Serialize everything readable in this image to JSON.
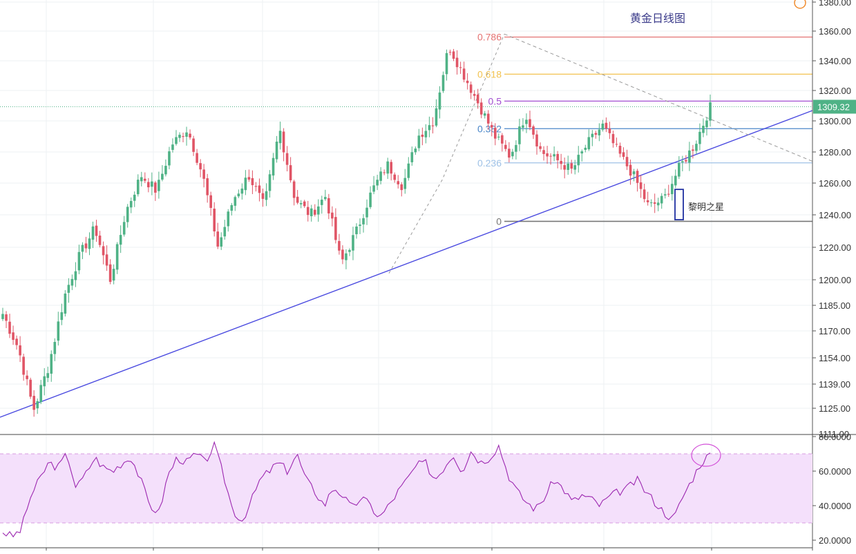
{
  "chart_data": [
    {
      "type": "candlestick",
      "title": "黄金日线图",
      "ylim": [
        1111,
        1380
      ],
      "price_ticks": [
        1125,
        1139,
        1154,
        1170,
        1185,
        1200,
        1220,
        1240,
        1260,
        1280,
        1300,
        1320,
        1340,
        1360,
        1380
      ],
      "tick_labels": [
        "1125.00",
        "1139.00",
        "1154.00",
        "1170.00",
        "1185.00",
        "1200.00",
        "1220.00",
        "1240.00",
        "1260.00",
        "1280.00",
        "1300.00",
        "1320.00",
        "1340.00",
        "1360.00",
        "1380.00"
      ],
      "axis_bottom_label": "1111.00",
      "current_price": 1309.32,
      "current_price_label": "1309.32",
      "fibonacci": [
        {
          "label": "0.786",
          "price": 1356,
          "color": "#e57373"
        },
        {
          "label": "0.618",
          "price": 1331,
          "color": "#f2c24f"
        },
        {
          "label": "0.5",
          "price": 1313,
          "color": "#a34fd1"
        },
        {
          "label": "0.382",
          "price": 1295,
          "color": "#4a86c8"
        },
        {
          "label": "0.236",
          "price": 1273,
          "color": "#9ec1e6"
        },
        {
          "label": "0",
          "price": 1236,
          "color": "#777777"
        }
      ],
      "annotation": {
        "text": "黎明之星",
        "price_low": 1237,
        "price_high": 1256
      },
      "key_prices": [
        1180,
        1160,
        1124,
        1150,
        1190,
        1215,
        1232,
        1200,
        1242,
        1265,
        1255,
        1285,
        1295,
        1265,
        1220,
        1250,
        1265,
        1245,
        1295,
        1250,
        1240,
        1252,
        1210,
        1230,
        1255,
        1272,
        1258,
        1290,
        1300,
        1350,
        1330,
        1310,
        1290,
        1277,
        1305,
        1280,
        1275,
        1268,
        1285,
        1297,
        1280,
        1265,
        1245,
        1250,
        1270,
        1285,
        1309
      ],
      "up_color": "#4fb286",
      "down_color": "#e05566",
      "trendline_color": "#4b4be0"
    },
    {
      "type": "line",
      "indicator": "RSI",
      "ylim": [
        18,
        81
      ],
      "tick_values": [
        20,
        40,
        60,
        80
      ],
      "tick_labels": [
        "20.0000",
        "40.0000",
        "60.0000",
        "80.0000"
      ],
      "upper_band": 70,
      "lower_band": 30,
      "values": [
        25,
        22,
        26,
        45,
        55,
        65,
        62,
        70,
        50,
        58,
        68,
        62,
        60,
        65,
        68,
        55,
        40,
        36,
        58,
        68,
        65,
        70,
        65,
        75,
        58,
        38,
        31,
        42,
        55,
        60,
        65,
        60,
        70,
        55,
        48,
        40,
        51,
        46,
        38,
        45,
        40,
        33,
        40,
        48,
        55,
        63,
        65,
        55,
        62,
        70,
        60,
        72,
        65,
        68,
        75,
        58,
        48,
        42,
        38,
        45,
        55,
        50,
        42,
        46,
        44,
        40,
        45,
        48,
        50,
        55,
        48,
        42,
        36,
        32,
        45,
        55,
        65,
        70
      ],
      "line_color": "#9c27b0",
      "band_fill": "#f4e0fb"
    }
  ]
}
